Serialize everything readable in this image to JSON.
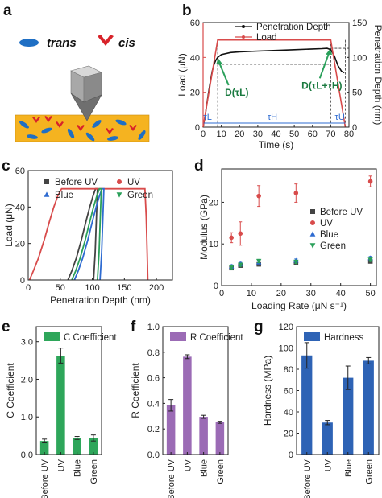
{
  "panels": {
    "a": {
      "letter": "a",
      "trans_label": "trans",
      "cis_label": "cis",
      "colors": {
        "trans": "#1f6fc4",
        "cis": "#d8232a",
        "film": "#f5b320",
        "tip": "#9a9a9a"
      }
    },
    "b": {
      "letter": "b"
    },
    "c": {
      "letter": "c"
    },
    "d": {
      "letter": "d"
    },
    "e": {
      "letter": "e"
    },
    "f": {
      "letter": "f"
    },
    "g": {
      "letter": "g"
    }
  },
  "chart_data": [
    {
      "id": "b",
      "type": "line",
      "xlabel": "Time (s)",
      "ylabel_left": "Load (μN)",
      "ylabel_right": "Penetration Depth (nm)",
      "xlim": [
        0,
        80
      ],
      "ylim_left": [
        0,
        60
      ],
      "ylim_right": [
        0,
        150
      ],
      "xticks": [
        0,
        10,
        20,
        30,
        40,
        50,
        60,
        70,
        80
      ],
      "yticks_left": [
        0,
        20,
        40,
        60
      ],
      "yticks_right": [
        0,
        50,
        100,
        150
      ],
      "series": [
        {
          "name": "Penetration Depth",
          "color": "#111111",
          "axis": "right",
          "x": [
            0,
            1,
            2,
            3,
            4,
            5,
            6,
            7,
            8,
            10,
            15,
            20,
            30,
            40,
            50,
            60,
            65,
            68,
            70,
            72,
            74,
            76,
            77.5
          ],
          "y": [
            0,
            14,
            32,
            50,
            66,
            80,
            90,
            96,
            100,
            104,
            107,
            108,
            109,
            110,
            111,
            112,
            112.5,
            113,
            111,
            102,
            88,
            80,
            78
          ]
        },
        {
          "name": "Load",
          "color": "#d84b4b",
          "axis": "left",
          "x": [
            0,
            8,
            70,
            78
          ],
          "y": [
            0,
            50,
            50,
            0
          ]
        }
      ],
      "annotations": {
        "d_left": "D(τL)",
        "d_right": "D(τL+τH)",
        "tau_l": "τL",
        "tau_h": "τH",
        "tau_u": "τU",
        "tau_l_span": [
          0,
          8
        ],
        "tau_h_span": [
          8,
          70
        ],
        "tau_u_span": [
          70,
          78
        ],
        "colors": {
          "arrow": "#2aa05a",
          "tau": "#2e6bd1"
        }
      },
      "legend": "top-right"
    },
    {
      "id": "c",
      "type": "line",
      "xlabel": "Penetration Depth (nm)",
      "ylabel": "Load (μN)",
      "xlim": [
        0,
        225
      ],
      "ylim": [
        0,
        60
      ],
      "xticks": [
        0,
        50,
        100,
        150,
        200
      ],
      "yticks": [
        0,
        20,
        40,
        60
      ],
      "series": [
        {
          "name": "Before UV",
          "color": "#444444",
          "marker": "square",
          "load_x": [
            62,
            68,
            75,
            83,
            90,
            96,
            101,
            105
          ],
          "load_y": [
            0,
            5,
            12,
            22,
            32,
            40,
            46,
            50
          ],
          "hold_x": [
            105,
            108
          ],
          "unload_x": [
            108,
            106.5,
            104.5,
            102
          ],
          "unload_y": [
            50,
            35,
            15,
            0
          ]
        },
        {
          "name": "UV",
          "color": "#d84b4b",
          "marker": "circle",
          "load_x": [
            2,
            8,
            16,
            25,
            33,
            40,
            46,
            52
          ],
          "load_y": [
            0,
            5,
            12,
            22,
            32,
            40,
            46,
            50
          ],
          "hold_x": [
            52,
            182
          ],
          "unload_x": [
            182,
            184,
            185.5,
            186.5
          ],
          "unload_y": [
            50,
            35,
            15,
            0
          ]
        },
        {
          "name": "Blue",
          "color": "#2e6bd1",
          "marker": "triangle",
          "load_x": [
            72,
            78,
            85,
            93,
            100,
            106,
            111,
            115
          ],
          "load_y": [
            0,
            5,
            12,
            22,
            32,
            40,
            46,
            50
          ],
          "hold_x": [
            115,
            118
          ],
          "unload_x": [
            118,
            116.5,
            114.5,
            112
          ],
          "unload_y": [
            50,
            35,
            15,
            0
          ]
        },
        {
          "name": "Green",
          "color": "#2aa05a",
          "marker": "triangle-down",
          "load_x": [
            68,
            74,
            81,
            89,
            96,
            102,
            107,
            111
          ],
          "load_y": [
            0,
            5,
            12,
            22,
            32,
            40,
            46,
            50
          ],
          "hold_x": [
            111,
            114
          ],
          "unload_x": [
            114,
            112.5,
            110.5,
            108
          ],
          "unload_y": [
            50,
            35,
            15,
            0
          ]
        }
      ],
      "legend": "top"
    },
    {
      "id": "d",
      "type": "scatter",
      "xlabel": "Loading Rate (μN s⁻¹)",
      "ylabel": "Modulus (GPa)",
      "xlim": [
        0,
        52
      ],
      "ylim": [
        0,
        28
      ],
      "xticks": [
        0,
        10,
        20,
        30,
        40,
        50
      ],
      "yticks": [
        0,
        10,
        20
      ],
      "series": [
        {
          "name": "Before UV",
          "color": "#444444",
          "marker": "square",
          "x": [
            3.3,
            6.3,
            12.5,
            25,
            50
          ],
          "y": [
            4.2,
            4.8,
            5.1,
            5.4,
            5.8
          ],
          "err": [
            0.4,
            0.4,
            0.4,
            0.4,
            0.4
          ]
        },
        {
          "name": "UV",
          "color": "#d84b4b",
          "marker": "circle",
          "x": [
            3.3,
            6.3,
            12.5,
            25,
            50
          ],
          "y": [
            11.5,
            12.5,
            21.5,
            22.2,
            25
          ],
          "err": [
            1.2,
            2.8,
            2.5,
            2.2,
            1.3
          ]
        },
        {
          "name": "Blue",
          "color": "#2e6bd1",
          "marker": "triangle",
          "x": [
            3.3,
            6.3,
            12.5,
            25,
            50
          ],
          "y": [
            4.6,
            5.2,
            5.6,
            6.0,
            6.6
          ],
          "err": [
            0.4,
            0.4,
            0.4,
            0.4,
            0.4
          ]
        },
        {
          "name": "Green",
          "color": "#2aa05a",
          "marker": "triangle-down",
          "x": [
            3.3,
            6.3,
            12.5,
            25,
            50
          ],
          "y": [
            4.4,
            5.0,
            5.9,
            5.7,
            6.2
          ],
          "err": [
            0.4,
            0.4,
            0.4,
            0.4,
            0.4
          ]
        }
      ],
      "legend": "right"
    },
    {
      "id": "e",
      "type": "bar",
      "series_name": "C Coefficient",
      "ylabel": "C Coefficient",
      "color": "#2ea65a",
      "categories": [
        "Before UV",
        "UV",
        "Blue",
        "Green"
      ],
      "values": [
        0.36,
        2.63,
        0.44,
        0.44
      ],
      "errors": [
        0.05,
        0.2,
        0.04,
        0.08
      ],
      "ylim": [
        0,
        3.4
      ],
      "yticks": [
        0.0,
        1.0,
        2.0,
        3.0
      ],
      "ytick_labels": [
        "0.0",
        "1.0",
        "2.0",
        "3.0"
      ],
      "legend": "top"
    },
    {
      "id": "f",
      "type": "bar",
      "series_name": "R Coefficient",
      "ylabel": "R Coefficient",
      "color": "#9b6bb5",
      "categories": [
        "Before UV",
        "UV",
        "Blue",
        "Green"
      ],
      "values": [
        0.385,
        0.765,
        0.295,
        0.252
      ],
      "errors": [
        0.045,
        0.015,
        0.012,
        0.008
      ],
      "ylim": [
        0,
        1.0
      ],
      "yticks": [
        0.0,
        0.2,
        0.4,
        0.6,
        0.8,
        1.0
      ],
      "ytick_labels": [
        "0.0",
        "0.2",
        "0.4",
        "0.6",
        "0.8",
        "1.0"
      ],
      "legend": "top"
    },
    {
      "id": "g",
      "type": "bar",
      "series_name": "Hardness",
      "ylabel": "Hardness (MPa)",
      "color": "#2e63b5",
      "categories": [
        "Before UV",
        "UV",
        "Blue",
        "Green"
      ],
      "values": [
        93,
        30,
        72,
        88
      ],
      "errors": [
        12,
        2,
        11,
        3
      ],
      "ylim": [
        0,
        120
      ],
      "yticks": [
        0,
        20,
        40,
        60,
        80,
        100,
        120
      ],
      "ytick_labels": [
        "0",
        "20",
        "40",
        "60",
        "80",
        "100",
        "120"
      ],
      "legend": "top"
    }
  ]
}
